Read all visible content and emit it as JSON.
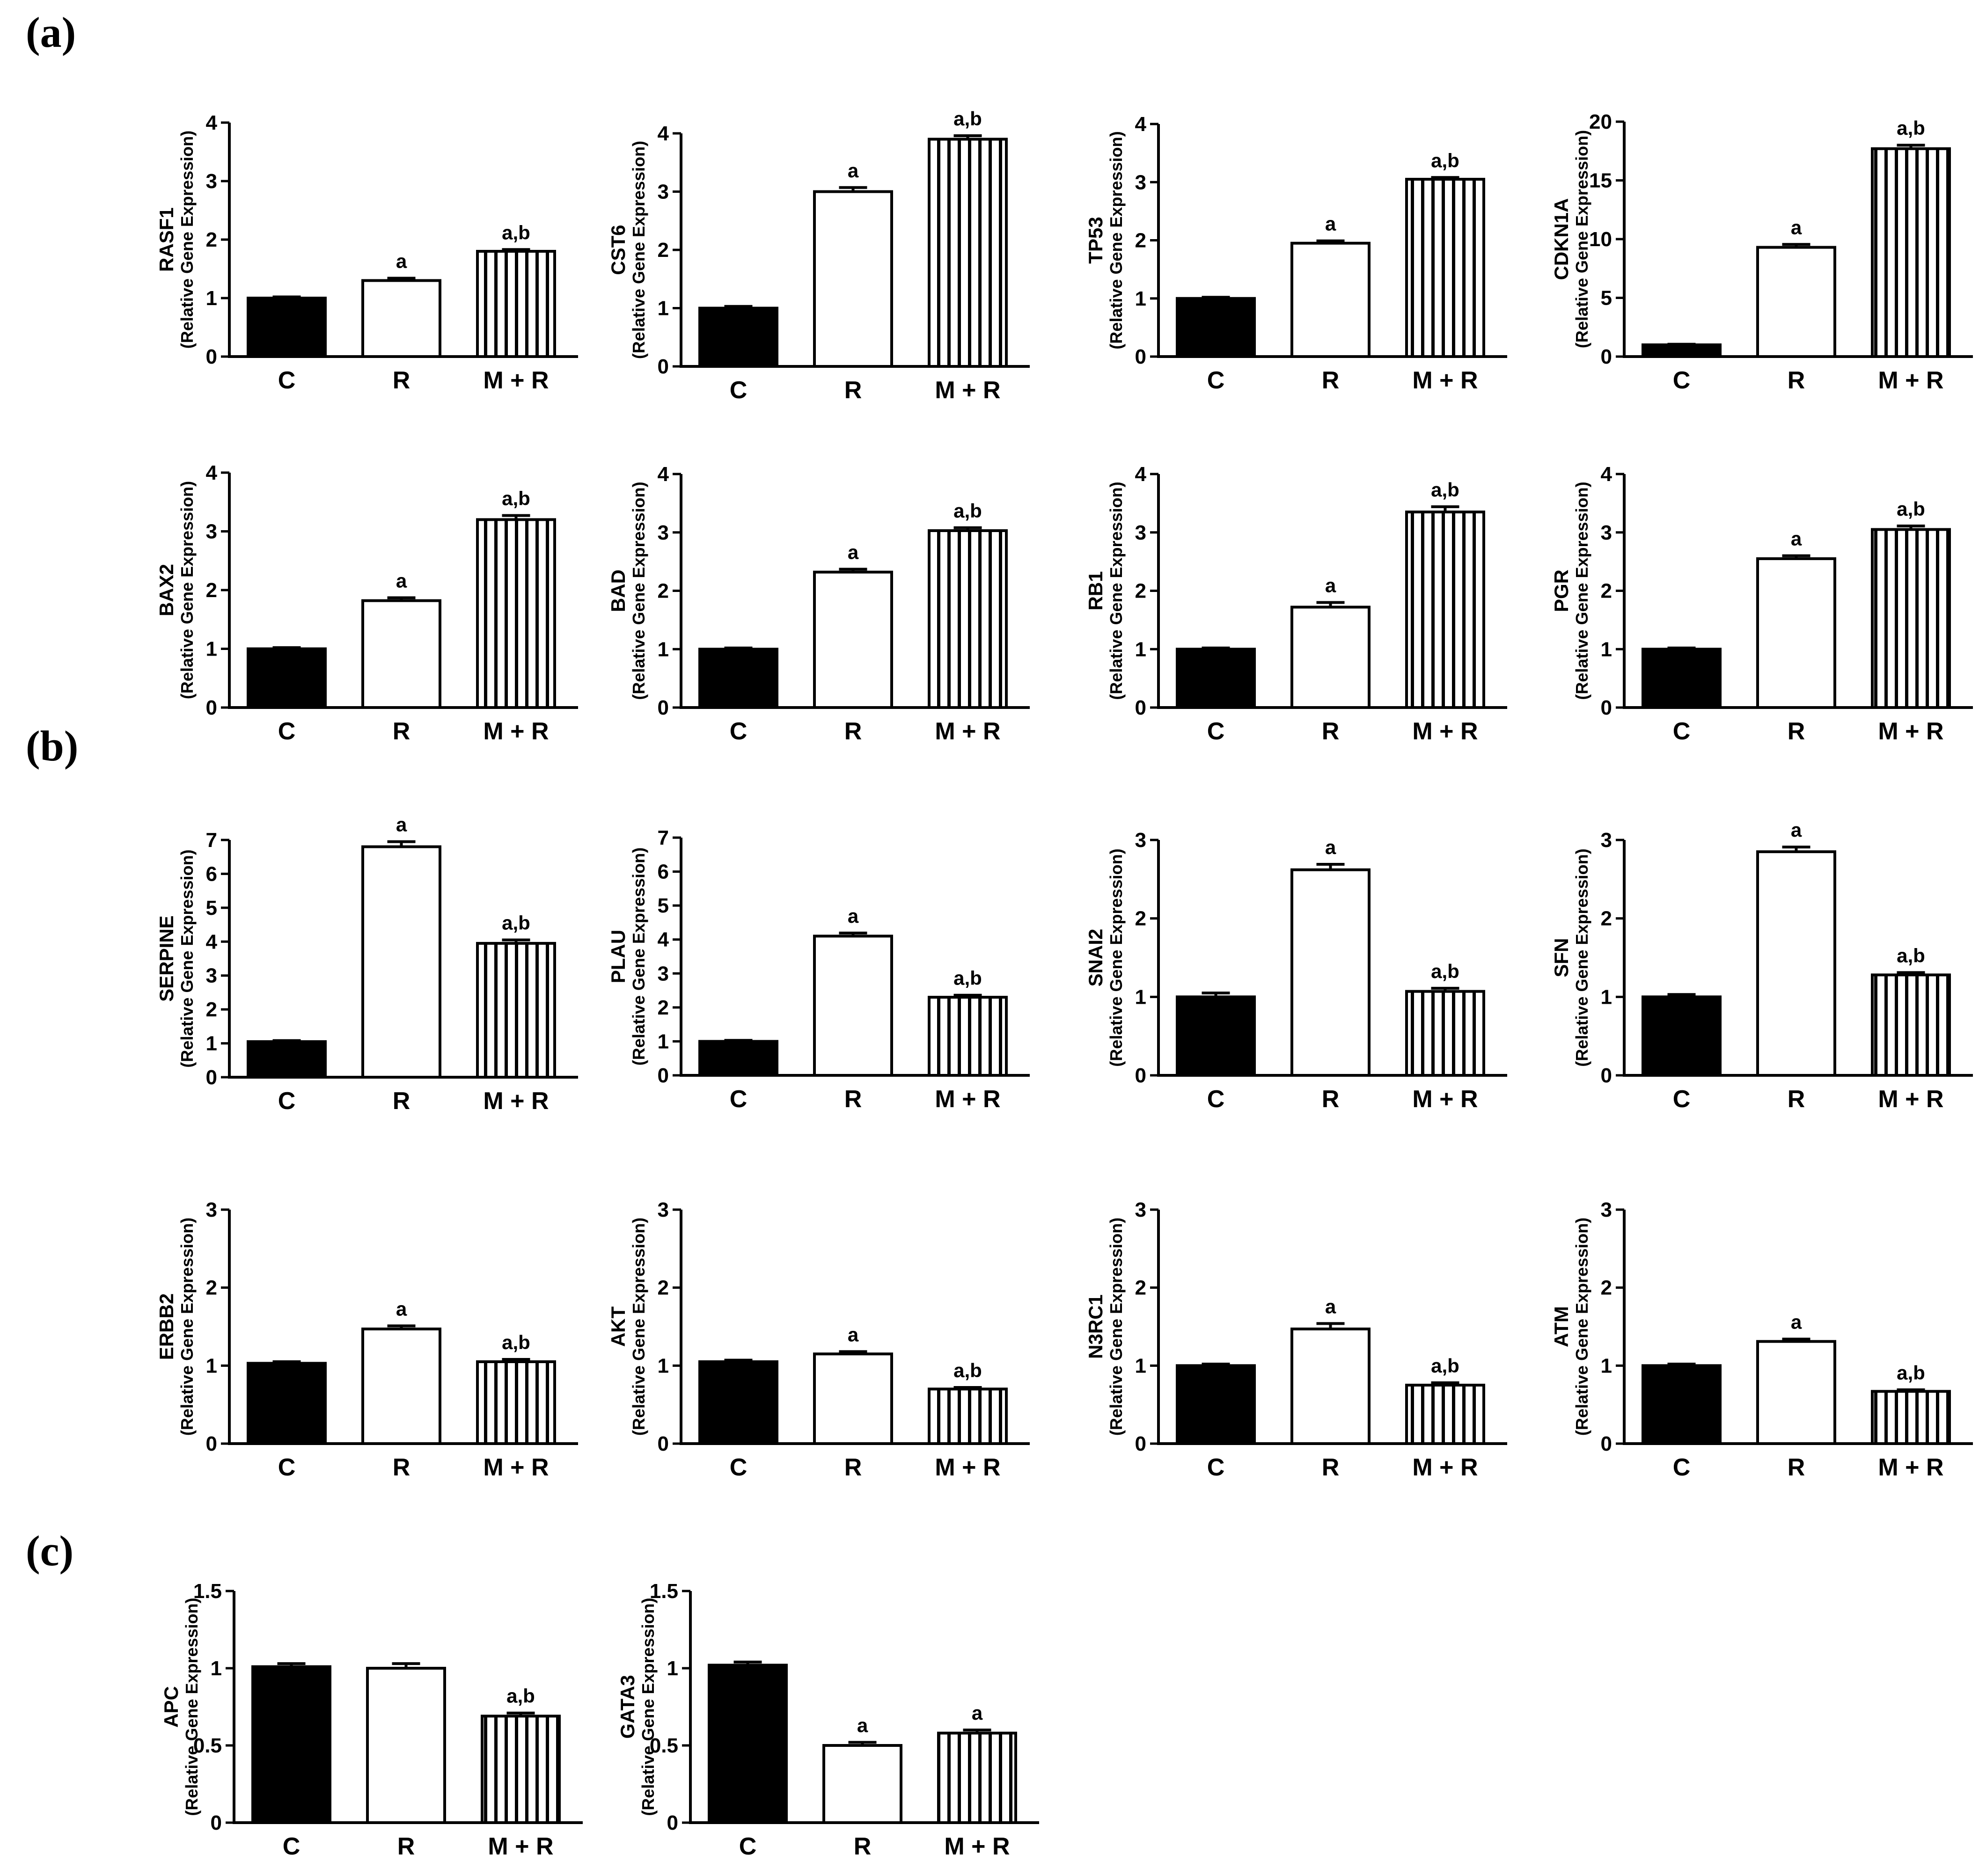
{
  "colors": {
    "ink": "#000000",
    "open_fill": "#ffffff",
    "hatch": "#000000",
    "background": "#ffffff"
  },
  "panels": [
    {
      "label": "(a)"
    },
    {
      "label": "(b)"
    },
    {
      "label": "(c)"
    }
  ],
  "chart_data": [
    {
      "type": "bar",
      "panel": "(a)",
      "gene": "RASF1",
      "ylabel": "(Relative Gene Expression)",
      "categories": [
        "C",
        "R",
        "M + R"
      ],
      "values": [
        1.0,
        1.3,
        1.8
      ],
      "errors": [
        0.02,
        0.04,
        0.03
      ],
      "significance": [
        "",
        "a",
        "a,b"
      ],
      "ylim": [
        0,
        4
      ],
      "yticks": [
        "0",
        "1",
        "2",
        "3",
        "4"
      ],
      "fills": [
        "solid",
        "open",
        "hatched"
      ]
    },
    {
      "type": "bar",
      "panel": "(a)",
      "gene": "CST6",
      "ylabel": "(Relative Gene Expression)",
      "categories": [
        "C",
        "R",
        "M + R"
      ],
      "values": [
        1.0,
        3.0,
        3.9
      ],
      "errors": [
        0.03,
        0.07,
        0.06
      ],
      "significance": [
        "",
        "a",
        "a,b"
      ],
      "ylim": [
        0,
        4
      ],
      "yticks": [
        "0",
        "1",
        "2",
        "3",
        "4"
      ],
      "fills": [
        "solid",
        "open",
        "hatched"
      ]
    },
    {
      "type": "bar",
      "panel": "(a)",
      "gene": "TP53",
      "ylabel": "(Relative Gene Expression)",
      "categories": [
        "C",
        "R",
        "M + R"
      ],
      "values": [
        1.0,
        1.95,
        3.05
      ],
      "errors": [
        0.02,
        0.04,
        0.03
      ],
      "significance": [
        "",
        "a",
        "a,b"
      ],
      "ylim": [
        0,
        4
      ],
      "yticks": [
        "0",
        "1",
        "2",
        "3",
        "4"
      ],
      "fills": [
        "solid",
        "open",
        "hatched"
      ]
    },
    {
      "type": "bar",
      "panel": "(a)",
      "gene": "CDKN1A",
      "ylabel": "(Relative Gene Expression)",
      "categories": [
        "C",
        "R",
        "M + R"
      ],
      "values": [
        1.0,
        9.3,
        17.7
      ],
      "errors": [
        0.05,
        0.25,
        0.3
      ],
      "significance": [
        "",
        "a",
        "a,b"
      ],
      "ylim": [
        0,
        20
      ],
      "yticks": [
        "0",
        "5",
        "10",
        "15",
        "20"
      ],
      "fills": [
        "solid",
        "open",
        "hatched"
      ]
    },
    {
      "type": "bar",
      "panel": "(a)",
      "gene": "BAX2",
      "ylabel": "(Relative Gene Expression)",
      "categories": [
        "C",
        "R",
        "M + R"
      ],
      "values": [
        1.0,
        1.82,
        3.2
      ],
      "errors": [
        0.02,
        0.05,
        0.07
      ],
      "significance": [
        "",
        "a",
        "a,b"
      ],
      "ylim": [
        0,
        4
      ],
      "yticks": [
        "0",
        "1",
        "2",
        "3",
        "4"
      ],
      "fills": [
        "solid",
        "open",
        "hatched"
      ]
    },
    {
      "type": "bar",
      "panel": "(a)",
      "gene": "BAD",
      "ylabel": "(Relative Gene Expression)",
      "categories": [
        "C",
        "R",
        "M + R"
      ],
      "values": [
        1.0,
        2.32,
        3.03
      ],
      "errors": [
        0.02,
        0.05,
        0.05
      ],
      "significance": [
        "",
        "a",
        "a,b"
      ],
      "ylim": [
        0,
        4
      ],
      "yticks": [
        "0",
        "1",
        "2",
        "3",
        "4"
      ],
      "fills": [
        "solid",
        "open",
        "hatched"
      ]
    },
    {
      "type": "bar",
      "panel": "(a)",
      "gene": "RB1",
      "ylabel": "(Relative Gene Expression)",
      "categories": [
        "C",
        "R",
        "M + R"
      ],
      "values": [
        1.0,
        1.72,
        3.35
      ],
      "errors": [
        0.02,
        0.08,
        0.09
      ],
      "significance": [
        "",
        "a",
        "a,b"
      ],
      "ylim": [
        0,
        4
      ],
      "yticks": [
        "0",
        "1",
        "2",
        "3",
        "4"
      ],
      "fills": [
        "solid",
        "open",
        "hatched"
      ]
    },
    {
      "type": "bar",
      "panel": "(a)",
      "gene": "PGR",
      "ylabel": "(Relative Gene Expression)",
      "categories": [
        "C",
        "R",
        "M + R"
      ],
      "values": [
        1.0,
        2.55,
        3.05
      ],
      "errors": [
        0.02,
        0.05,
        0.06
      ],
      "significance": [
        "",
        "a",
        "a,b"
      ],
      "ylim": [
        0,
        4
      ],
      "yticks": [
        "0",
        "1",
        "2",
        "3",
        "4"
      ],
      "fills": [
        "solid",
        "open",
        "hatched"
      ]
    },
    {
      "type": "bar",
      "panel": "(b)",
      "gene": "SERPINE",
      "ylabel": "(Relative Gene Expression)",
      "categories": [
        "C",
        "R",
        "M + R"
      ],
      "values": [
        1.05,
        6.8,
        3.95
      ],
      "errors": [
        0.03,
        0.15,
        0.1
      ],
      "significance": [
        "",
        "a",
        "a,b"
      ],
      "ylim": [
        0,
        7
      ],
      "yticks": [
        "0",
        "1",
        "2",
        "3",
        "4",
        "5",
        "6",
        "7"
      ],
      "fills": [
        "solid",
        "open",
        "hatched"
      ]
    },
    {
      "type": "bar",
      "panel": "(b)",
      "gene": "PLAU",
      "ylabel": "(Relative Gene Expression)",
      "categories": [
        "C",
        "R",
        "M + R"
      ],
      "values": [
        1.0,
        4.1,
        2.3
      ],
      "errors": [
        0.03,
        0.09,
        0.06
      ],
      "significance": [
        "",
        "a",
        "a,b"
      ],
      "ylim": [
        0,
        7
      ],
      "yticks": [
        "0",
        "1",
        "2",
        "3",
        "4",
        "5",
        "6",
        "7"
      ],
      "fills": [
        "solid",
        "open",
        "hatched"
      ]
    },
    {
      "type": "bar",
      "panel": "(b)",
      "gene": "SNAI2",
      "ylabel": "(Relative Gene Expression)",
      "categories": [
        "C",
        "R",
        "M + R"
      ],
      "values": [
        1.0,
        2.62,
        1.07
      ],
      "errors": [
        0.05,
        0.07,
        0.04
      ],
      "significance": [
        "",
        "a",
        "a,b"
      ],
      "ylim": [
        0,
        3
      ],
      "yticks": [
        "0",
        "1",
        "2",
        "3"
      ],
      "fills": [
        "solid",
        "open",
        "hatched"
      ]
    },
    {
      "type": "bar",
      "panel": "(b)",
      "gene": "SFN",
      "ylabel": "(Relative Gene Expression)",
      "categories": [
        "C",
        "R",
        "M + R"
      ],
      "values": [
        1.0,
        2.85,
        1.28
      ],
      "errors": [
        0.03,
        0.06,
        0.03
      ],
      "significance": [
        "",
        "a",
        "a,b"
      ],
      "ylim": [
        0,
        3
      ],
      "yticks": [
        "0",
        "1",
        "2",
        "3"
      ],
      "fills": [
        "solid",
        "open",
        "hatched"
      ]
    },
    {
      "type": "bar",
      "panel": "(b)",
      "gene": "ERBB2",
      "ylabel": "(Relative Gene Expression)",
      "categories": [
        "C",
        "R",
        "M + R"
      ],
      "values": [
        1.03,
        1.47,
        1.05
      ],
      "errors": [
        0.02,
        0.04,
        0.03
      ],
      "significance": [
        "",
        "a",
        "a,b"
      ],
      "ylim": [
        0,
        3
      ],
      "yticks": [
        "0",
        "1",
        "2",
        "3"
      ],
      "fills": [
        "solid",
        "open",
        "hatched"
      ]
    },
    {
      "type": "bar",
      "panel": "(b)",
      "gene": "AKT",
      "ylabel": "(Relative Gene Expression)",
      "categories": [
        "C",
        "R",
        "M + R"
      ],
      "values": [
        1.05,
        1.15,
        0.7
      ],
      "errors": [
        0.02,
        0.03,
        0.02
      ],
      "significance": [
        "",
        "a",
        "a,b"
      ],
      "ylim": [
        0,
        3
      ],
      "yticks": [
        "0",
        "1",
        "2",
        "3"
      ],
      "fills": [
        "solid",
        "open",
        "hatched"
      ]
    },
    {
      "type": "bar",
      "panel": "(b)",
      "gene": "N3RC1",
      "ylabel": "(Relative Gene Expression)",
      "categories": [
        "C",
        "R",
        "M + R"
      ],
      "values": [
        1.0,
        1.47,
        0.75
      ],
      "errors": [
        0.02,
        0.07,
        0.03
      ],
      "significance": [
        "",
        "a",
        "a,b"
      ],
      "ylim": [
        0,
        3
      ],
      "yticks": [
        "0",
        "1",
        "2",
        "3"
      ],
      "fills": [
        "solid",
        "open",
        "hatched"
      ]
    },
    {
      "type": "bar",
      "panel": "(b)",
      "gene": "ATM",
      "ylabel": "(Relative Gene Expression)",
      "categories": [
        "C",
        "R",
        "M + R"
      ],
      "values": [
        1.0,
        1.31,
        0.67
      ],
      "errors": [
        0.02,
        0.03,
        0.02
      ],
      "significance": [
        "",
        "a",
        "a,b"
      ],
      "ylim": [
        0,
        3
      ],
      "yticks": [
        "0",
        "1",
        "2",
        "3"
      ],
      "fills": [
        "solid",
        "open",
        "hatched"
      ]
    },
    {
      "type": "bar",
      "panel": "(c)",
      "gene": "APC",
      "ylabel": "(Relative Gene Expression)",
      "categories": [
        "C",
        "R",
        "M + R"
      ],
      "values": [
        1.01,
        1.0,
        0.69
      ],
      "errors": [
        0.02,
        0.03,
        0.02
      ],
      "significance": [
        "",
        "",
        "a,b"
      ],
      "ylim": [
        0,
        1.5
      ],
      "yticks": [
        "0",
        "0.5",
        "1",
        "1.5"
      ],
      "fills": [
        "solid",
        "open",
        "hatched"
      ]
    },
    {
      "type": "bar",
      "panel": "(c)",
      "gene": "GATA3",
      "ylabel": "(Relative Gene Expression)",
      "categories": [
        "C",
        "R",
        "M + R"
      ],
      "values": [
        1.02,
        0.5,
        0.58
      ],
      "errors": [
        0.02,
        0.02,
        0.02
      ],
      "significance": [
        "",
        "a",
        "a"
      ],
      "ylim": [
        0,
        1.5
      ],
      "yticks": [
        "0",
        "0.5",
        "1",
        "1.5"
      ],
      "fills": [
        "solid",
        "open",
        "hatched"
      ]
    }
  ]
}
